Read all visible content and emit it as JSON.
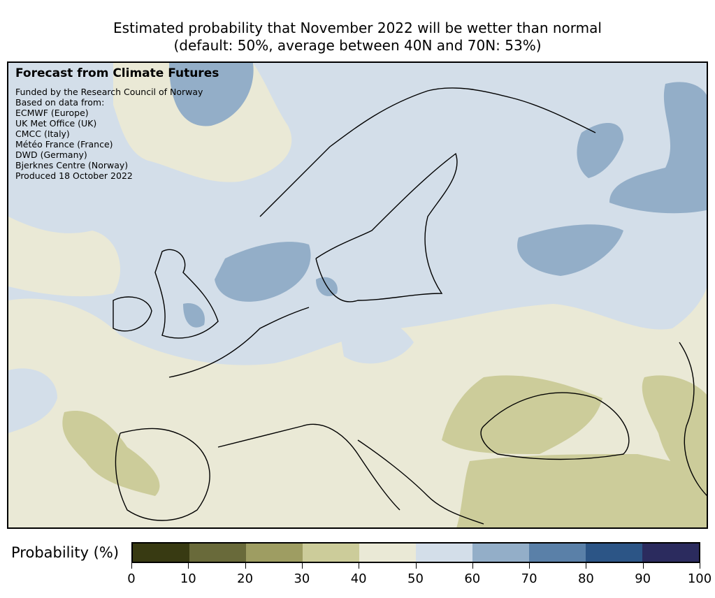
{
  "title": {
    "line1": "Estimated probability that November 2022 will be wetter than normal",
    "line2": "(default: 50%, average between 40N and 70N: 53%)"
  },
  "credits": {
    "heading": "Forecast from Climate Futures",
    "lines": [
      "Funded by the Research Council of Norway",
      "Based on data from:",
      "ECMWF (Europe)",
      "UK Met Office (UK)",
      "CMCC (Italy)",
      "Météo France (France)",
      "DWD (Germany)",
      "Bjerknes Centre (Norway)",
      "Produced 18 October 2022"
    ]
  },
  "colorbar": {
    "label": "Probability (%)",
    "ticks": [
      "0",
      "10",
      "20",
      "30",
      "40",
      "50",
      "60",
      "70",
      "80",
      "90",
      "100"
    ],
    "bins": [
      {
        "range": [
          0,
          10
        ],
        "color": "#383a12"
      },
      {
        "range": [
          10,
          20
        ],
        "color": "#696a3a"
      },
      {
        "range": [
          20,
          30
        ],
        "color": "#9e9d62"
      },
      {
        "range": [
          30,
          40
        ],
        "color": "#cccc9a"
      },
      {
        "range": [
          40,
          50
        ],
        "color": "#eae9d6"
      },
      {
        "range": [
          50,
          60
        ],
        "color": "#d3dee9"
      },
      {
        "range": [
          60,
          70
        ],
        "color": "#93aec8"
      },
      {
        "range": [
          70,
          80
        ],
        "color": "#5a80a8"
      },
      {
        "range": [
          80,
          90
        ],
        "color": "#2c5586"
      },
      {
        "range": [
          90,
          100
        ],
        "color": "#2b2b5e"
      }
    ]
  },
  "map": {
    "region": "Europe",
    "default_probability": 50,
    "average_40N_70N": 53
  }
}
